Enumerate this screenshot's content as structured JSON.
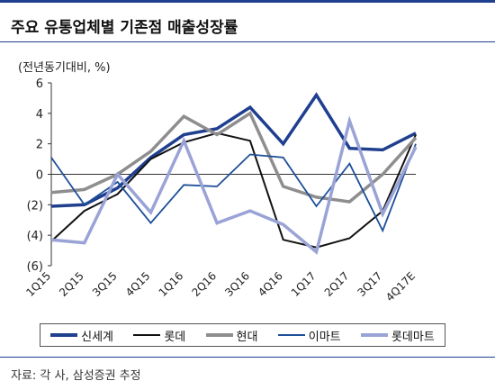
{
  "header": {
    "title": "주요 유통업체별 기존점 매출성장률"
  },
  "chart_data": {
    "type": "line",
    "unit_label": "(전년동기대비, %)",
    "categories": [
      "1Q15",
      "2Q15",
      "3Q15",
      "4Q15",
      "1Q16",
      "2Q16",
      "3Q16",
      "4Q16",
      "1Q17",
      "2Q17",
      "3Q17",
      "4Q17E"
    ],
    "ylim": [
      -6,
      6
    ],
    "yticks": [
      6,
      4,
      2,
      0,
      -2,
      -4,
      -6
    ],
    "ytick_labels": [
      "6",
      "4",
      "2",
      "0",
      "(2)",
      "(4)",
      "(6)"
    ],
    "grid": false,
    "legend_position": "bottom",
    "series": [
      {
        "name": "신세계",
        "color": "#1f3f8f",
        "width": 3.5,
        "values": [
          -2.1,
          -2.0,
          -0.9,
          1.1,
          2.6,
          3.0,
          4.4,
          2.0,
          5.2,
          1.7,
          1.6,
          2.7
        ]
      },
      {
        "name": "롯데",
        "color": "#111111",
        "width": 2,
        "values": [
          -4.4,
          -2.4,
          -1.3,
          1.0,
          2.1,
          2.7,
          2.2,
          -4.3,
          -4.8,
          -4.2,
          -2.4,
          2.6
        ]
      },
      {
        "name": "현대",
        "color": "#8e8e8e",
        "width": 3.5,
        "values": [
          -1.2,
          -1.0,
          0.0,
          1.5,
          3.8,
          2.6,
          4.0,
          -0.8,
          -1.5,
          -1.8,
          0.0,
          2.4
        ]
      },
      {
        "name": "이마트",
        "color": "#1d4f9a",
        "width": 1.8,
        "values": [
          1.1,
          -2.0,
          -0.5,
          -3.2,
          -0.7,
          -0.8,
          1.3,
          1.1,
          -2.1,
          0.7,
          -3.7,
          2.0
        ]
      },
      {
        "name": "롯데마트",
        "color": "#9aa3d6",
        "width": 3.5,
        "values": [
          -4.3,
          -4.5,
          0.0,
          -2.5,
          2.2,
          -3.2,
          -2.4,
          -3.3,
          -5.1,
          3.5,
          -2.6,
          1.8
        ]
      }
    ]
  },
  "footer": {
    "source": "자료: 각 사, 삼성증권 추정"
  }
}
